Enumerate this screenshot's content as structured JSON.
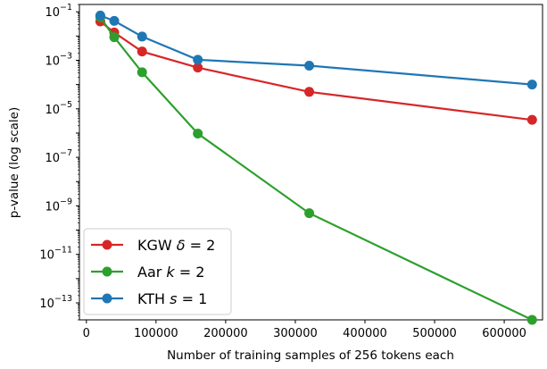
{
  "chart_data": {
    "type": "line",
    "title": "",
    "xlabel": "Number of training samples of 256 tokens each",
    "ylabel": "p-value (log scale)",
    "yscale": "log",
    "xlim": [
      -10000,
      655000
    ],
    "ylim": [
      2e-14,
      0.2
    ],
    "grid": false,
    "legend_position": "lower-left",
    "x_ticks": [
      0,
      100000,
      200000,
      300000,
      400000,
      500000,
      600000
    ],
    "x_tick_labels": [
      "0",
      "100000",
      "200000",
      "300000",
      "400000",
      "500000",
      "600000"
    ],
    "y_ticks": [
      {
        "value": 0.1,
        "base": "10",
        "exp": "−1"
      },
      {
        "value": 0.001,
        "base": "10",
        "exp": "−3"
      },
      {
        "value": 1e-05,
        "base": "10",
        "exp": "−5"
      },
      {
        "value": 1e-07,
        "base": "10",
        "exp": "−7"
      },
      {
        "value": 1e-09,
        "base": "10",
        "exp": "−9"
      },
      {
        "value": 1e-11,
        "base": "10",
        "exp": "−11"
      },
      {
        "value": 1e-13,
        "base": "10",
        "exp": "−13"
      }
    ],
    "series": [
      {
        "name": "KGW δ = 2",
        "legend_parts": {
          "text": "KGW ",
          "var": "δ",
          "rest": " = 2"
        },
        "color": "#d62728",
        "x": [
          20000,
          40000,
          80000,
          160000,
          320000,
          640000
        ],
        "y": [
          0.04,
          0.014,
          0.0023,
          0.0005,
          5e-05,
          3.5e-06
        ]
      },
      {
        "name": "Aar k = 2",
        "legend_parts": {
          "text": "Aar ",
          "var": "k",
          "rest": " = 2"
        },
        "color": "#2ca02c",
        "x": [
          20000,
          40000,
          80000,
          160000,
          320000,
          640000
        ],
        "y": [
          0.06,
          0.009,
          0.00032,
          9.5e-07,
          5e-10,
          2e-14
        ]
      },
      {
        "name": "KTH s = 1",
        "legend_parts": {
          "text": "KTH ",
          "var": "s",
          "rest": " = 1"
        },
        "color": "#1f77b4",
        "x": [
          20000,
          40000,
          80000,
          160000,
          320000,
          640000
        ],
        "y": [
          0.07,
          0.042,
          0.0095,
          0.00105,
          0.0006,
          0.0001
        ]
      }
    ]
  }
}
